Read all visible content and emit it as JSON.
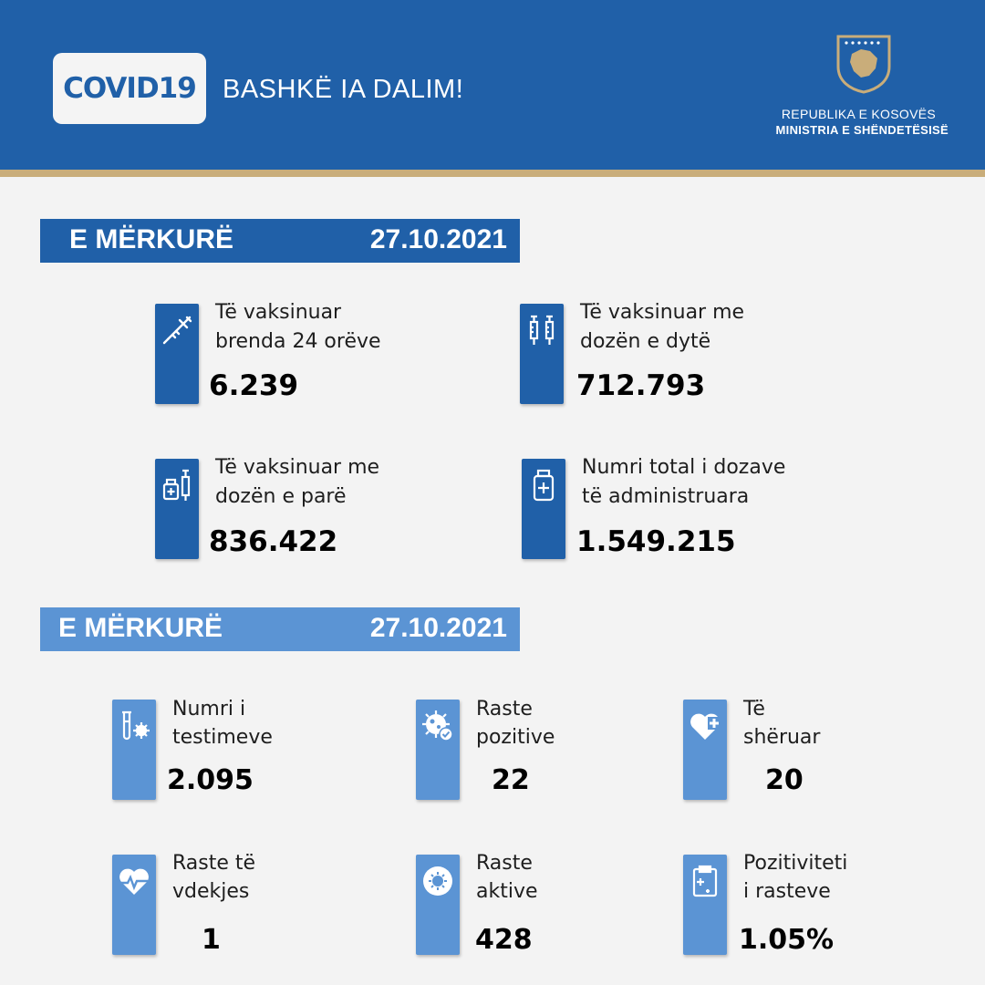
{
  "header": {
    "badge": "COVID19",
    "slogan": "BASHKË IA DALIM!",
    "gov_line1": "REPUBLIKA E KOSOVËS",
    "gov_line2": "MINISTRIA E SHËNDETËSISË",
    "emblem_icon": "kosovo-coat-of-arms-icon"
  },
  "vaccination": {
    "day": "E MËRKURË",
    "date": "27.10.2021",
    "cards": [
      {
        "label_1": "Të vaksinuar",
        "label_2": "brenda 24 orëve",
        "value": "6.239",
        "icon": "syringe-icon"
      },
      {
        "label_1": "Të vaksinuar me",
        "label_2": "dozën e dytë",
        "value": "712.793",
        "icon": "two-syringes-icon"
      },
      {
        "label_1": "Të vaksinuar me",
        "label_2": "dozën e parë",
        "value": "836.422",
        "icon": "vial-syringe-icon"
      },
      {
        "label_1": "Numri total i dozave",
        "label_2": "të administruara",
        "value": "1.549.215",
        "icon": "medicine-bottle-icon"
      }
    ]
  },
  "cases": {
    "day": "E MËRKURË",
    "date": "27.10.2021",
    "cards": [
      {
        "label_1": "Numri i",
        "label_2": "testimeve",
        "value": "2.095",
        "icon": "test-tube-virus-icon"
      },
      {
        "label_1": "Raste",
        "label_2": "pozitive",
        "value": "22",
        "icon": "virus-check-icon"
      },
      {
        "label_1": "Të",
        "label_2": "shëruar",
        "value": "20",
        "icon": "heart-plus-icon"
      },
      {
        "label_1": "Raste të",
        "label_2": "vdekjes",
        "value": "1",
        "icon": "heart-pulse-icon"
      },
      {
        "label_1": "Raste",
        "label_2": "aktive",
        "value": "428",
        "icon": "virus-circle-icon"
      },
      {
        "label_1": "Pozitiviteti",
        "label_2": "i rasteve",
        "value": "1.05%",
        "icon": "clipboard-icon"
      }
    ]
  },
  "colors": {
    "primary": "#2060a8",
    "secondary": "#5b94d4",
    "gold": "#c9ad7a",
    "background": "#f3f3f3"
  }
}
